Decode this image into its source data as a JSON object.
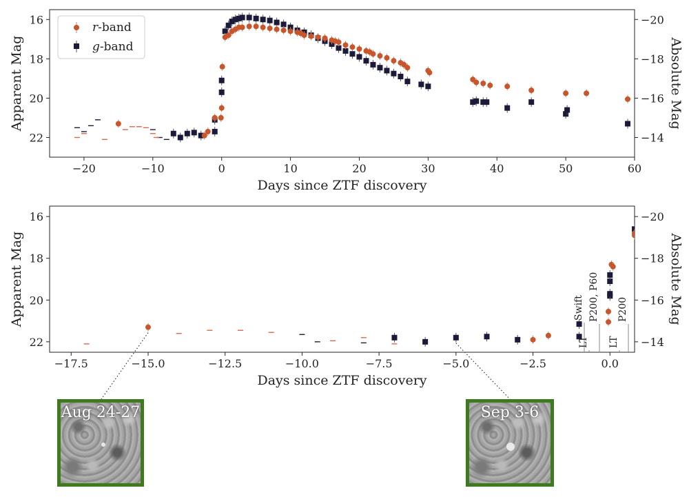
{
  "chart_data": [
    {
      "type": "scatter",
      "xlabel": "Days since ZTF discovery",
      "ylabel": "Apparent Mag",
      "ylabel_right": "Absolute Mag",
      "xlim": [
        -25,
        60
      ],
      "ylim": [
        23,
        15.5
      ],
      "xticks": [
        -20,
        -10,
        0,
        10,
        20,
        30,
        40,
        50,
        60
      ],
      "yticks": [
        16,
        18,
        20,
        22
      ],
      "yticks_right": [
        -20,
        -18,
        -16,
        -14
      ],
      "legend": {
        "placement": "top-left",
        "entries": [
          "r-band",
          "g-band"
        ],
        "italic_prefix": [
          "r",
          "g"
        ],
        "suffix": "-band"
      },
      "colors": {
        "r": "#c8552b",
        "g": "#1b1a3b",
        "limit_r": "#d9684a",
        "limit_g": "#1b1a3b"
      },
      "series": [
        {
          "name": "r-band",
          "marker": "circle",
          "x": [
            -15,
            -2.5,
            -2,
            -1,
            -0.1,
            0,
            0.1,
            0.5,
            1,
            1.5,
            2,
            2.5,
            3,
            4,
            5,
            6,
            7,
            8,
            9,
            10,
            11,
            11.5,
            12,
            13,
            14,
            15,
            16,
            16.5,
            17,
            18,
            19,
            20,
            21,
            21.5,
            22,
            23,
            24,
            25,
            26,
            26.5,
            27,
            30,
            30.2,
            36.5,
            37,
            38,
            39,
            41.5,
            45,
            50,
            53,
            59
          ],
          "y": [
            21.3,
            21.9,
            21.7,
            21.0,
            21.0,
            20.5,
            18.4,
            16.9,
            16.8,
            16.6,
            16.5,
            16.4,
            16.4,
            16.35,
            16.35,
            16.4,
            16.45,
            16.5,
            16.55,
            16.6,
            16.65,
            16.7,
            16.8,
            16.85,
            16.9,
            16.95,
            17.05,
            17.1,
            17.15,
            17.3,
            17.4,
            17.5,
            17.6,
            17.65,
            17.75,
            17.85,
            17.95,
            18.1,
            18.2,
            18.3,
            18.45,
            18.6,
            18.7,
            19.05,
            19.2,
            19.25,
            19.35,
            19.4,
            19.6,
            19.75,
            19.75,
            20.05
          ]
        },
        {
          "name": "g-band",
          "marker": "square",
          "x": [
            -7,
            -6,
            -5,
            -4,
            -3,
            -1,
            -1,
            0,
            0,
            0.5,
            1,
            1.5,
            2,
            2.5,
            3,
            4,
            5,
            6,
            7,
            8,
            9,
            10,
            11,
            12,
            13,
            14,
            15,
            16,
            17,
            18,
            19,
            20,
            21,
            22,
            23,
            24,
            25,
            26,
            27,
            29,
            30,
            36.5,
            37,
            38,
            38.5,
            41.5,
            45,
            50,
            50.2,
            59
          ],
          "y": [
            21.8,
            22.0,
            21.8,
            21.75,
            21.9,
            21.7,
            21.1,
            19.7,
            19.1,
            16.6,
            16.3,
            16.1,
            16.0,
            15.95,
            15.9,
            15.9,
            15.95,
            16.0,
            16.05,
            16.15,
            16.25,
            16.4,
            16.55,
            16.65,
            16.8,
            16.95,
            17.1,
            17.25,
            17.45,
            17.6,
            17.75,
            17.9,
            18.1,
            18.3,
            18.45,
            18.6,
            18.75,
            18.9,
            19.15,
            19.3,
            19.4,
            20.2,
            20.15,
            20.2,
            20.2,
            20.5,
            20.2,
            20.8,
            20.6,
            21.3
          ]
        }
      ],
      "upper_limits": [
        {
          "band": "g",
          "x": [
            -21,
            -20,
            -19,
            -18,
            -10,
            -9,
            -8
          ],
          "y": [
            21.5,
            21.7,
            21.4,
            21.1,
            21.6,
            22.0,
            22.1
          ]
        },
        {
          "band": "r",
          "x": [
            -21,
            -20,
            -17,
            -14,
            -13,
            -12,
            -11,
            -10,
            -9.5
          ],
          "y": [
            22.0,
            21.8,
            22.1,
            21.6,
            21.45,
            21.45,
            21.5,
            21.8,
            22.0
          ]
        }
      ]
    },
    {
      "type": "scatter",
      "xlabel": "Days since ZTF discovery",
      "ylabel": "Apparent Mag",
      "ylabel_right": "Absolute Mag",
      "xlim": [
        -18.2,
        0.8
      ],
      "ylim": [
        22.5,
        15.5
      ],
      "xticks": [
        -17.5,
        -15.0,
        -12.5,
        -10.0,
        -7.5,
        -5.0,
        -2.5,
        0.0
      ],
      "yticks": [
        16,
        18,
        20,
        22
      ],
      "yticks_right": [
        -20,
        -18,
        -16,
        -14
      ],
      "series": [
        {
          "name": "r-band",
          "marker": "circle",
          "x": [
            -15,
            -2.5,
            -2,
            -0.05,
            -0.05,
            0.05,
            0.1,
            0.8,
            0.8,
            1.0
          ],
          "y": [
            21.3,
            21.9,
            21.7,
            21.05,
            20.55,
            18.3,
            18.4,
            16.9,
            16.8,
            16.8
          ]
        },
        {
          "name": "g-band",
          "marker": "square",
          "x": [
            -7,
            -6,
            -5,
            -4,
            -3,
            -1,
            -1,
            0,
            0,
            0,
            0,
            0.8,
            0.9,
            1.0
          ],
          "y": [
            21.8,
            22.0,
            21.8,
            21.75,
            21.9,
            21.75,
            21.15,
            19.8,
            19.7,
            19.1,
            18.8,
            16.6,
            16.3,
            16.3
          ]
        }
      ],
      "upper_limits": [
        {
          "band": "g",
          "x": [
            -18.3,
            -10,
            -9.5,
            -8
          ],
          "y": [
            21.1,
            21.65,
            22.0,
            22.05
          ]
        },
        {
          "band": "r",
          "x": [
            -17,
            -14,
            -13,
            -12,
            -11,
            -9,
            -8,
            -7
          ],
          "y": [
            22.1,
            21.6,
            21.45,
            21.45,
            21.55,
            21.95,
            21.8,
            22.1
          ]
        }
      ],
      "annotations": [
        {
          "x": 0.55,
          "text": "Swift"
        },
        {
          "x": 0.62,
          "text": "LT"
        },
        {
          "x": 0.95,
          "text": "P200, P60"
        },
        {
          "x": 1.9,
          "text": "LT"
        },
        {
          "x": 2.1,
          "text": "P200"
        }
      ]
    }
  ],
  "thumbnails": [
    {
      "label": "Aug 24-27",
      "points_to_day": -15.0,
      "border_color": "#3f7a21"
    },
    {
      "label": "Sep 3-6",
      "points_to_day": -5.0,
      "border_color": "#3f7a21"
    }
  ]
}
